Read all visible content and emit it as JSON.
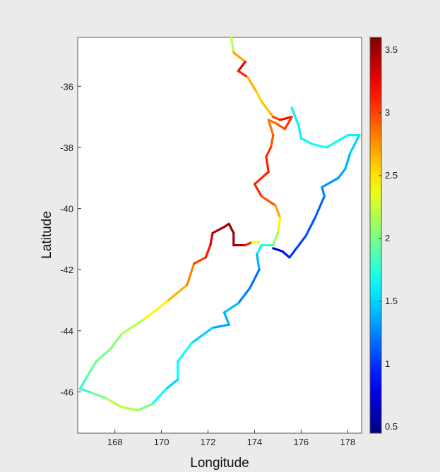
{
  "chart_data": {
    "type": "line",
    "title": "",
    "xlabel": "Longitude",
    "ylabel": "Latitude",
    "xlim": [
      166.4,
      178.6
    ],
    "ylim": [
      -47.35,
      -34.4
    ],
    "x_ticks": [
      168,
      170,
      172,
      174,
      176,
      178
    ],
    "y_ticks": [
      -36,
      -38,
      -40,
      -42,
      -44,
      -46
    ],
    "colorbar": {
      "range": [
        0.45,
        3.6
      ],
      "ticks": [
        0.5,
        1,
        1.5,
        2,
        2.5,
        3,
        3.5
      ],
      "colormap": "jet"
    },
    "series": [
      {
        "points": [
          [
            173.0,
            -34.4,
            2.1
          ],
          [
            173.1,
            -34.9,
            2.3
          ],
          [
            173.6,
            -35.2,
            3.1
          ],
          [
            173.3,
            -35.5,
            3.5
          ],
          [
            173.7,
            -35.7,
            2.7
          ],
          [
            174.1,
            -36.2,
            2.6
          ],
          [
            174.3,
            -36.5,
            2.5
          ],
          [
            174.7,
            -36.9,
            2.7
          ],
          [
            174.8,
            -37.0,
            2.7
          ],
          [
            175.1,
            -37.1,
            3.3
          ],
          [
            175.6,
            -37.0,
            3.1
          ],
          [
            175.3,
            -37.4,
            3.0
          ],
          [
            174.9,
            -37.2,
            2.9
          ],
          [
            174.6,
            -37.1,
            2.8
          ],
          [
            174.8,
            -37.6,
            2.9
          ],
          [
            174.7,
            -38.0,
            3.0
          ],
          [
            174.5,
            -38.3,
            3.1
          ],
          [
            174.6,
            -38.8,
            3.1
          ],
          [
            174.0,
            -39.2,
            3.1
          ],
          [
            174.3,
            -39.6,
            3.1
          ],
          [
            174.9,
            -39.9,
            2.8
          ],
          [
            175.1,
            -40.3,
            2.6
          ],
          [
            175.0,
            -40.8,
            2.3
          ],
          [
            174.8,
            -41.2,
            1.9
          ],
          [
            174.3,
            -41.2,
            1.7
          ],
          [
            174.1,
            -41.5,
            1.5
          ],
          [
            174.2,
            -42.0,
            1.3
          ],
          [
            173.8,
            -42.6,
            1.1
          ],
          [
            173.3,
            -43.1,
            1.4
          ],
          [
            172.7,
            -43.4,
            1.5
          ],
          [
            172.9,
            -43.8,
            1.3
          ],
          [
            172.2,
            -43.9,
            1.4
          ],
          [
            171.3,
            -44.4,
            1.6
          ],
          [
            170.7,
            -45.0,
            1.7
          ],
          [
            170.7,
            -45.6,
            1.6
          ],
          [
            170.2,
            -45.9,
            1.4
          ],
          [
            169.6,
            -46.4,
            1.9
          ],
          [
            169.0,
            -46.6,
            2.1
          ],
          [
            168.3,
            -46.5,
            2.3
          ],
          [
            167.6,
            -46.2,
            2.1
          ],
          [
            166.9,
            -46.0,
            1.9
          ],
          [
            166.5,
            -45.9,
            1.7
          ],
          [
            166.8,
            -45.5,
            1.9
          ],
          [
            167.2,
            -45.0,
            2.0
          ],
          [
            167.8,
            -44.6,
            2.0
          ],
          [
            168.3,
            -44.1,
            2.1
          ],
          [
            169.3,
            -43.6,
            2.3
          ],
          [
            170.3,
            -43.0,
            2.6
          ],
          [
            171.1,
            -42.5,
            2.7
          ],
          [
            171.4,
            -41.8,
            2.9
          ],
          [
            171.9,
            -41.6,
            3.1
          ],
          [
            172.1,
            -41.2,
            3.2
          ],
          [
            172.2,
            -40.8,
            3.4
          ],
          [
            172.7,
            -40.6,
            3.5
          ],
          [
            172.9,
            -40.5,
            3.5
          ],
          [
            173.1,
            -40.8,
            3.5
          ],
          [
            173.1,
            -41.2,
            3.5
          ],
          [
            173.6,
            -41.2,
            3.4
          ],
          [
            173.9,
            -41.1,
            2.8
          ],
          [
            174.2,
            -41.1,
            1.9
          ]
        ]
      },
      {
        "points": [
          [
            174.8,
            -41.3,
            0.6
          ],
          [
            175.2,
            -41.4,
            0.8
          ],
          [
            175.5,
            -41.6,
            1.0
          ],
          [
            175.8,
            -41.3,
            1.0
          ],
          [
            176.2,
            -40.9,
            1.1
          ],
          [
            176.6,
            -40.3,
            1.1
          ],
          [
            177.0,
            -39.6,
            1.2
          ],
          [
            176.9,
            -39.3,
            1.3
          ],
          [
            177.6,
            -39.0,
            1.3
          ],
          [
            177.9,
            -38.7,
            1.4
          ],
          [
            178.1,
            -38.2,
            1.4
          ],
          [
            178.5,
            -37.6,
            1.6
          ],
          [
            178.0,
            -37.6,
            1.6
          ],
          [
            177.1,
            -38.0,
            1.7
          ],
          [
            176.5,
            -37.9,
            1.7
          ],
          [
            176.0,
            -37.7,
            1.6
          ],
          [
            175.9,
            -37.3,
            1.6
          ],
          [
            175.6,
            -36.7,
            1.6
          ]
        ]
      }
    ]
  }
}
